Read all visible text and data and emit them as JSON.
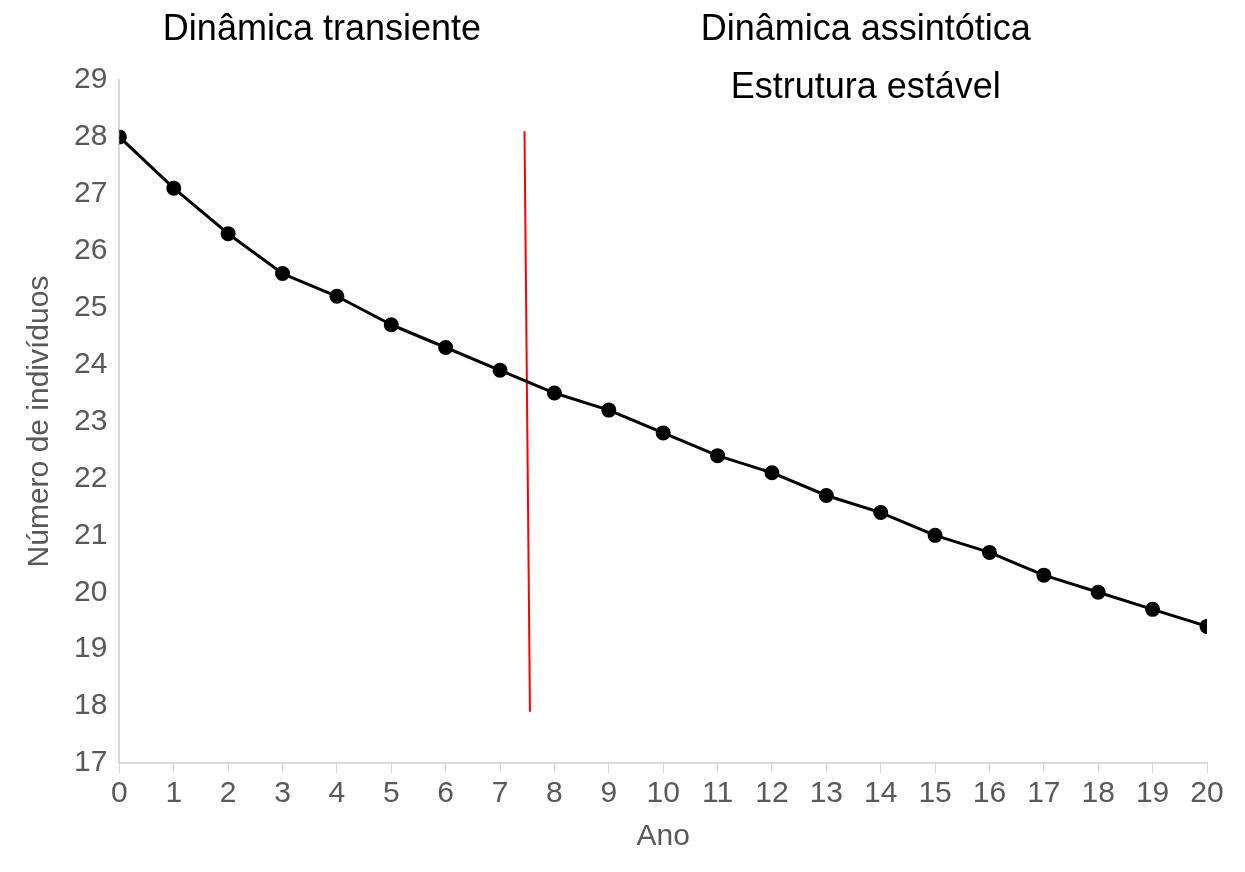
{
  "chart_data": {
    "type": "line",
    "xlabel": "Ano",
    "ylabel": "Número de indivíduos",
    "annotations": [
      "Dinâmica transiente",
      "Dinâmica assintótica\nEstrutura estável"
    ],
    "x": [
      0,
      1,
      2,
      3,
      4,
      5,
      6,
      7,
      8,
      9,
      10,
      11,
      12,
      13,
      14,
      15,
      16,
      17,
      18,
      19,
      20
    ],
    "series": [
      {
        "color": "#000000",
        "values": [
          28.0,
          27.1,
          26.3,
          25.6,
          25.2,
          24.7,
          24.3,
          23.9,
          23.5,
          23.2,
          22.8,
          22.4,
          22.1,
          21.7,
          21.4,
          21.0,
          20.7,
          20.3,
          20.0,
          19.7,
          19.4
        ]
      },
      {
        "color": "#ff0000",
        "type": "line",
        "marker": "none",
        "x": [
          7.45,
          7.55
        ],
        "values": [
          28.1,
          17.9
        ]
      }
    ],
    "xlim": [
      0,
      20
    ],
    "xticks": [
      0,
      1,
      2,
      3,
      4,
      5,
      6,
      7,
      8,
      9,
      10,
      11,
      12,
      13,
      14,
      15,
      16,
      17,
      18,
      19,
      20
    ],
    "ylim": [
      17,
      29
    ],
    "yticks": [
      17,
      18,
      19,
      20,
      21,
      22,
      23,
      24,
      25,
      26,
      27,
      28,
      29
    ],
    "grid": false,
    "legend": false,
    "marker": "circle",
    "line_style": "solid"
  }
}
